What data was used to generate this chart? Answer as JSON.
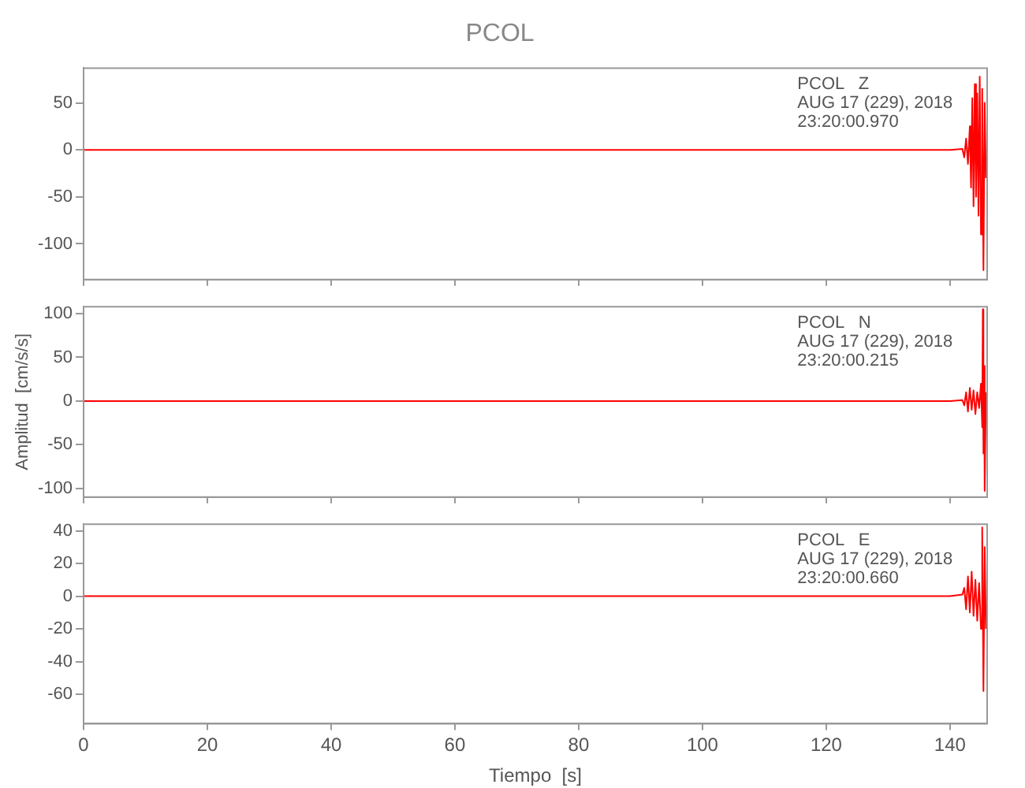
{
  "chart_data": [
    {
      "type": "line",
      "title": "PCOL",
      "annotations": [
        "PCOL   Z",
        "AUG 17 (229), 2018",
        "23:20:00.970"
      ],
      "tick_labels": "y",
      "xlim": [
        0,
        146
      ],
      "xticks": [
        0,
        20,
        40,
        60,
        80,
        100,
        120,
        140
      ],
      "ylim": [
        -138,
        87
      ],
      "yticks": [
        -100,
        -50,
        0,
        50
      ],
      "series": [
        {
          "color": "#ff0000",
          "x": [
            0,
            10,
            20,
            30,
            40,
            50,
            60,
            70,
            80,
            90,
            100,
            110,
            120,
            130,
            140,
            142,
            142.3,
            142.6,
            142.9,
            143.2,
            143.4,
            143.6,
            143.8,
            144.0,
            144.2,
            144.4,
            144.6,
            144.8,
            145.0,
            145.2,
            145.4,
            145.6,
            145.8
          ],
          "values": [
            0,
            0,
            0,
            0,
            0,
            0,
            0,
            0,
            0,
            0,
            0,
            0,
            0,
            0,
            0,
            1,
            -8,
            12,
            -15,
            25,
            -40,
            55,
            -60,
            70,
            -50,
            60,
            -70,
            78,
            -90,
            65,
            -128,
            50,
            -30
          ]
        }
      ]
    },
    {
      "type": "line",
      "ylabel": "Amplitud  [cm/s/s]",
      "annotations": [
        "PCOL   N",
        "AUG 17 (229), 2018",
        "23:20:00.215"
      ],
      "tick_labels": "y",
      "xlim": [
        0,
        146
      ],
      "xticks": [
        0,
        20,
        40,
        60,
        80,
        100,
        120,
        140
      ],
      "ylim": [
        -110,
        108
      ],
      "yticks": [
        -100,
        -50,
        0,
        50,
        100
      ],
      "series": [
        {
          "color": "#ff0000",
          "x": [
            0,
            10,
            20,
            30,
            40,
            50,
            60,
            70,
            80,
            90,
            100,
            110,
            120,
            130,
            140,
            142,
            142.3,
            142.6,
            142.9,
            143.2,
            143.5,
            143.8,
            144.1,
            144.4,
            144.7,
            145.0,
            145.2,
            145.3,
            145.4,
            145.5,
            145.6,
            145.8
          ],
          "values": [
            0,
            0,
            0,
            0,
            0,
            0,
            0,
            0,
            0,
            0,
            0,
            0,
            0,
            0,
            0,
            1,
            -5,
            10,
            -12,
            15,
            -10,
            12,
            -15,
            10,
            -8,
            20,
            -30,
            105,
            -60,
            40,
            -103,
            10
          ]
        }
      ]
    },
    {
      "type": "line",
      "xlabel": "Tiempo  [s]",
      "annotations": [
        "PCOL   E",
        "AUG 17 (229), 2018",
        "23:20:00.660"
      ],
      "xlim": [
        0,
        146
      ],
      "xticks": [
        0,
        20,
        40,
        60,
        80,
        100,
        120,
        140
      ],
      "ylim": [
        -78,
        44
      ],
      "yticks": [
        -60,
        -40,
        -20,
        0,
        20,
        40
      ],
      "series": [
        {
          "color": "#ff0000",
          "x": [
            0,
            10,
            20,
            30,
            40,
            50,
            60,
            70,
            80,
            90,
            100,
            110,
            120,
            130,
            140,
            142,
            142.3,
            142.6,
            142.9,
            143.2,
            143.5,
            143.8,
            144.1,
            144.4,
            144.7,
            145.0,
            145.2,
            145.4,
            145.6,
            145.8
          ],
          "values": [
            0,
            0,
            0,
            0,
            0,
            0,
            0,
            0,
            0,
            0,
            0,
            0,
            0,
            0,
            0,
            1,
            5,
            -8,
            12,
            -10,
            15,
            -12,
            10,
            -15,
            8,
            -20,
            42,
            -58,
            30,
            -20
          ]
        }
      ]
    }
  ]
}
